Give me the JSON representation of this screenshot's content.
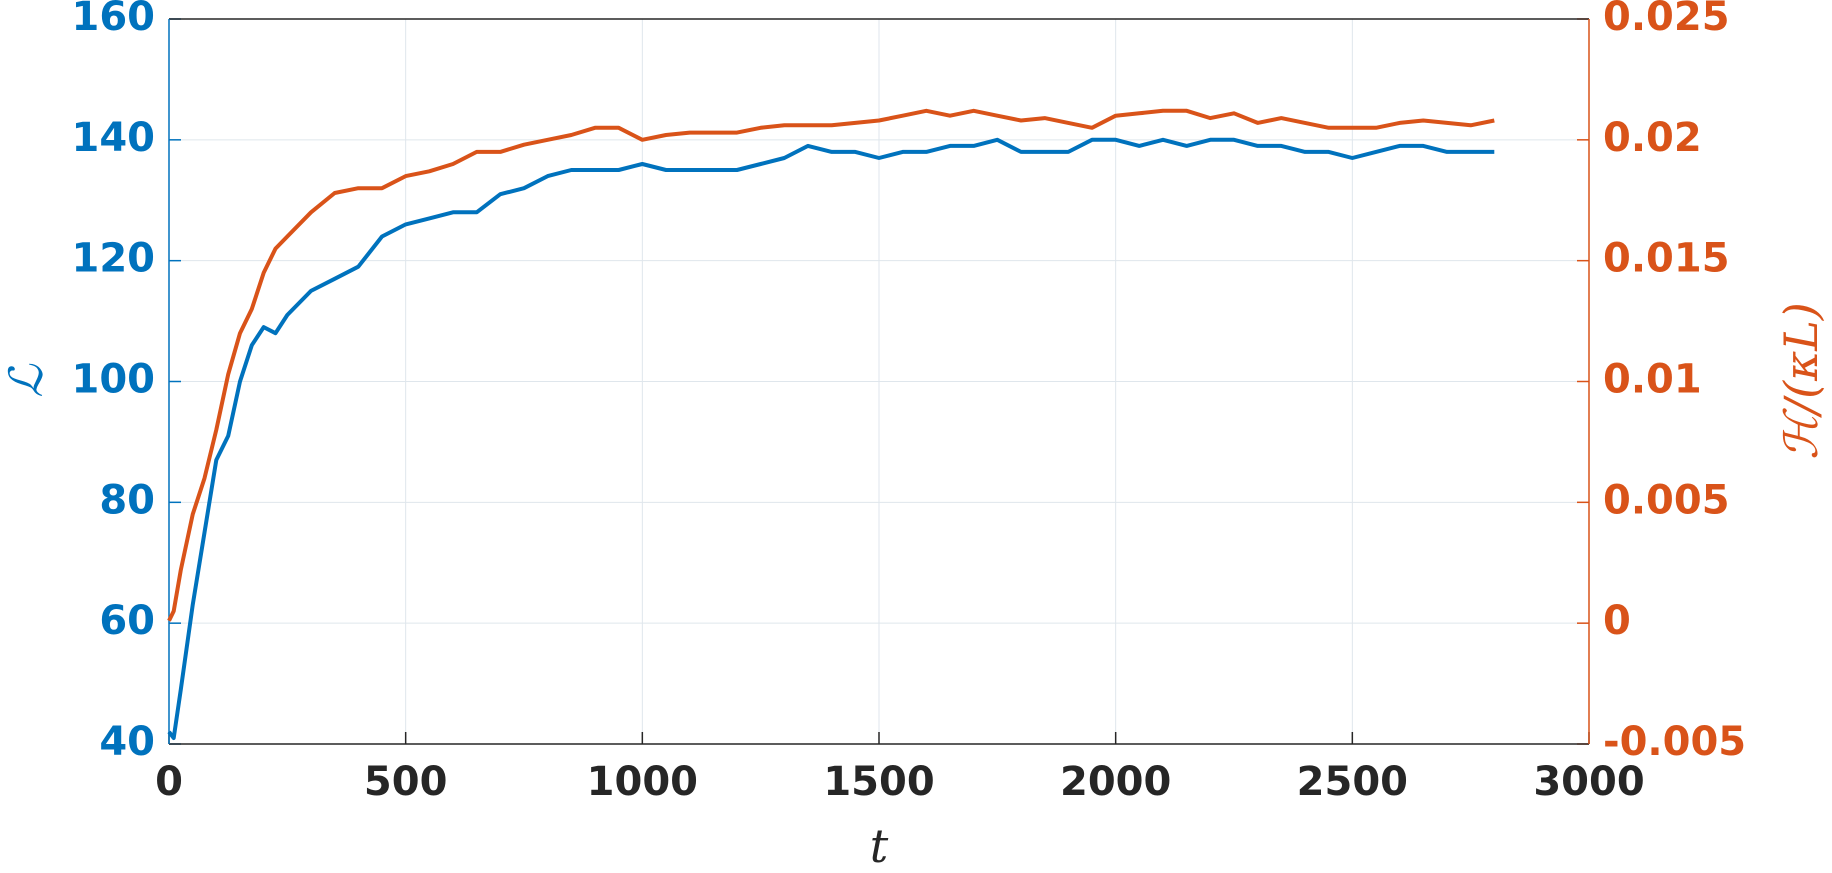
{
  "chart_data": {
    "type": "line",
    "xlabel": "t",
    "ylabel": "ℒ",
    "y2label": "ℋ/(κL)",
    "x": [
      0,
      10,
      25,
      50,
      75,
      100,
      125,
      150,
      175,
      200,
      225,
      250,
      300,
      350,
      400,
      450,
      500,
      550,
      600,
      650,
      700,
      750,
      800,
      850,
      900,
      950,
      1000,
      1050,
      1100,
      1150,
      1200,
      1250,
      1300,
      1350,
      1400,
      1450,
      1500,
      1550,
      1600,
      1650,
      1700,
      1750,
      1800,
      1850,
      1900,
      1950,
      2000,
      2050,
      2100,
      2150,
      2200,
      2250,
      2300,
      2350,
      2400,
      2450,
      2500,
      2550,
      2600,
      2650,
      2700,
      2750,
      2800
    ],
    "series": [
      {
        "name": "ℒ",
        "color": "#0072bd",
        "axis": "y",
        "values": [
          42,
          41,
          49,
          63,
          75,
          87,
          91,
          100,
          106,
          109,
          108,
          111,
          115,
          117,
          119,
          124,
          126,
          127,
          128,
          128,
          131,
          132,
          134,
          135,
          135,
          135,
          136,
          135,
          135,
          135,
          135,
          136,
          137,
          139,
          138,
          138,
          137,
          138,
          138,
          139,
          139,
          140,
          138,
          138,
          138,
          140,
          140,
          139,
          140,
          139,
          140,
          140,
          139,
          139,
          138,
          138,
          137,
          138,
          139,
          139,
          138,
          138,
          138
        ]
      },
      {
        "name": "ℋ/(κL)",
        "color": "#d95319",
        "axis": "y2",
        "values": [
          0.0001,
          0.0005,
          0.0022,
          0.0045,
          0.006,
          0.008,
          0.0103,
          0.012,
          0.013,
          0.0145,
          0.0155,
          0.016,
          0.017,
          0.0178,
          0.018,
          0.018,
          0.0185,
          0.0187,
          0.019,
          0.0195,
          0.0195,
          0.0198,
          0.02,
          0.0202,
          0.0205,
          0.0205,
          0.02,
          0.0202,
          0.0203,
          0.0203,
          0.0203,
          0.0205,
          0.0206,
          0.0206,
          0.0206,
          0.0207,
          0.0208,
          0.021,
          0.0212,
          0.021,
          0.0212,
          0.021,
          0.0208,
          0.0209,
          0.0207,
          0.0205,
          0.021,
          0.0211,
          0.0212,
          0.0212,
          0.0209,
          0.0211,
          0.0207,
          0.0209,
          0.0207,
          0.0205,
          0.0205,
          0.0205,
          0.0207,
          0.0208,
          0.0207,
          0.0206,
          0.0208
        ]
      }
    ],
    "xlim": [
      0,
      3000
    ],
    "xticks": [
      0,
      500,
      1000,
      1500,
      2000,
      2500,
      3000
    ],
    "ylim": [
      40,
      160
    ],
    "yticks": [
      40,
      60,
      80,
      100,
      120,
      140,
      160
    ],
    "y2lim": [
      -0.005,
      0.025
    ],
    "y2ticks": [
      -0.005,
      0,
      0.005,
      0.01,
      0.015,
      0.02,
      0.025
    ],
    "grid": true
  }
}
